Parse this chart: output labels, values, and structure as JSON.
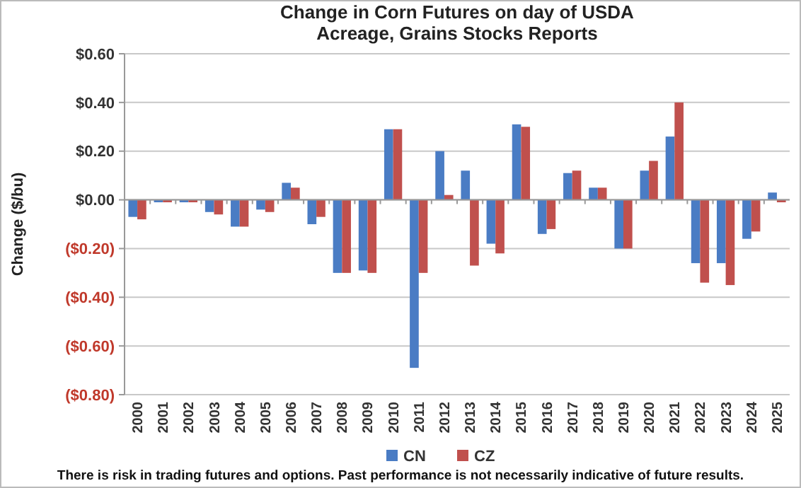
{
  "chart_data": {
    "type": "bar",
    "title": "Change in Corn Futures on day of USDA Acreage, Grains Stocks Reports",
    "ylabel": "Change ($/bu)",
    "categories": [
      "2000",
      "2001",
      "2002",
      "2003",
      "2004",
      "2005",
      "2006",
      "2007",
      "2008",
      "2009",
      "2010",
      "2011",
      "2012",
      "2013",
      "2014",
      "2015",
      "2016",
      "2017",
      "2018",
      "2019",
      "2020",
      "2021",
      "2022",
      "2023",
      "2024",
      "2025"
    ],
    "series": [
      {
        "name": "CN",
        "color": "#4a7cc4",
        "values": [
          -0.07,
          -0.01,
          -0.01,
          -0.05,
          -0.11,
          -0.04,
          0.07,
          -0.1,
          -0.3,
          -0.29,
          0.29,
          -0.69,
          0.2,
          0.12,
          -0.18,
          0.31,
          -0.14,
          0.11,
          0.05,
          -0.2,
          0.12,
          0.26,
          -0.26,
          -0.26,
          -0.16,
          0.03
        ]
      },
      {
        "name": "CZ",
        "color": "#c0504d",
        "values": [
          -0.08,
          -0.01,
          -0.01,
          -0.06,
          -0.11,
          -0.05,
          0.05,
          -0.07,
          -0.3,
          -0.3,
          0.29,
          -0.3,
          0.02,
          -0.27,
          -0.22,
          0.3,
          -0.12,
          0.12,
          0.05,
          -0.2,
          0.16,
          0.4,
          -0.34,
          -0.35,
          -0.13,
          -0.01
        ]
      }
    ],
    "ylim": [
      -0.8,
      0.6
    ],
    "yticks": [
      {
        "value": 0.6,
        "label": "$0.60"
      },
      {
        "value": 0.4,
        "label": "$0.40"
      },
      {
        "value": 0.2,
        "label": "$0.20"
      },
      {
        "value": 0,
        "label": "$0.00"
      },
      {
        "value": -0.2,
        "label": "($0.20)"
      },
      {
        "value": -0.4,
        "label": "($0.40)"
      },
      {
        "value": -0.6,
        "label": "($0.60)"
      },
      {
        "value": -0.8,
        "label": "($0.80)"
      }
    ],
    "grid": "y",
    "legend": "bottom",
    "annotations": [
      "There is risk in trading futures and options.  Past performance is not necessarily indicative of future results."
    ]
  }
}
